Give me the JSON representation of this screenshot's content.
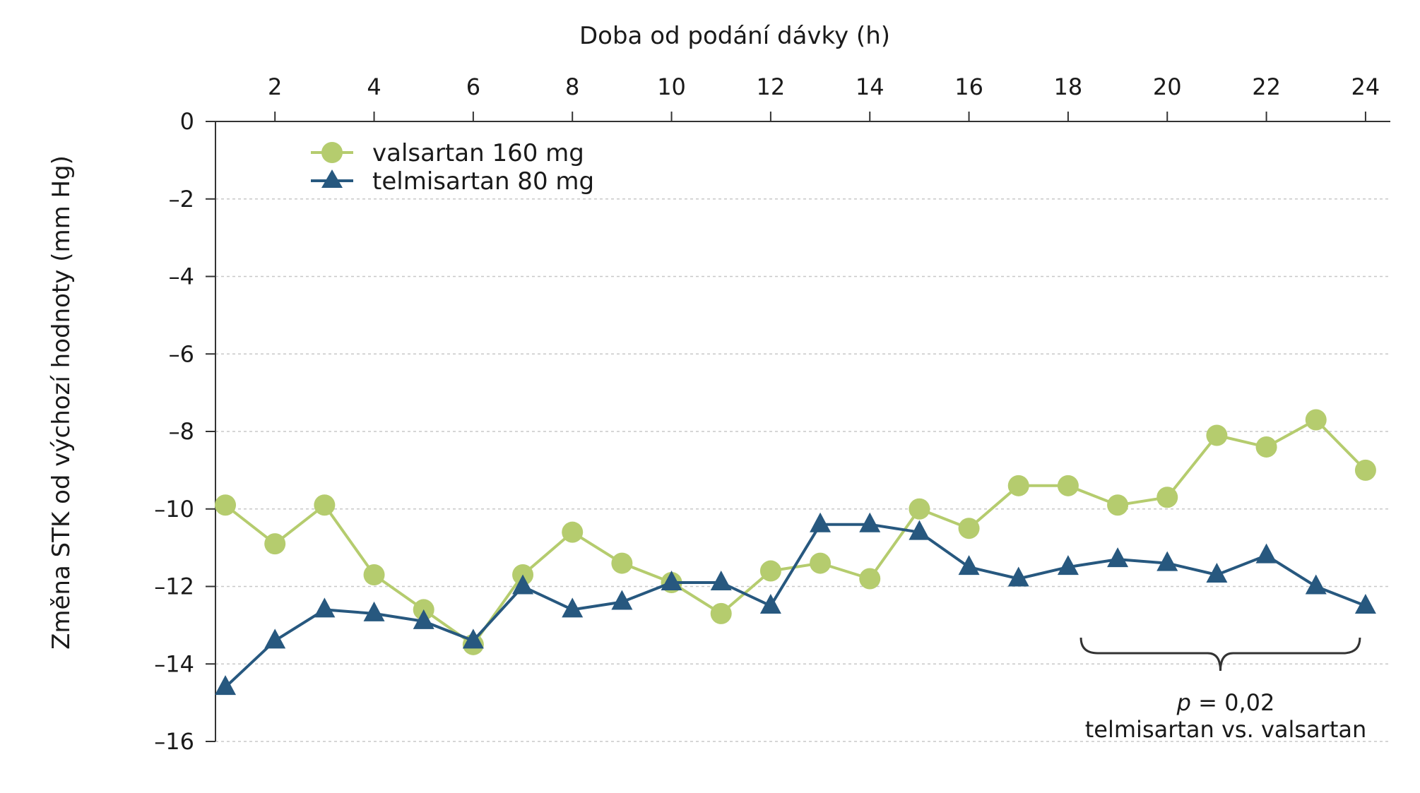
{
  "chart_data": {
    "type": "line",
    "title": "",
    "xlabel": "Doba od podání dávky (h)",
    "ylabel": "Změna STK od výchozí hodnoty (mm Hg)",
    "x_axis_position": "top",
    "grid": "horizontal-dashed",
    "xlim": [
      0.8,
      24.5
    ],
    "ylim": [
      -16,
      0
    ],
    "xticks": [
      2,
      4,
      6,
      8,
      10,
      12,
      14,
      16,
      18,
      20,
      22,
      24
    ],
    "yticks": [
      0,
      -2,
      -4,
      -6,
      -8,
      -10,
      -12,
      -14,
      -16
    ],
    "ytick_labels": [
      "0",
      "–2",
      "–4",
      "–6",
      "–8",
      "–10",
      "–12",
      "–14",
      "–16"
    ],
    "x": [
      1,
      2,
      3,
      4,
      5,
      6,
      7,
      8,
      9,
      10,
      11,
      12,
      13,
      14,
      15,
      16,
      17,
      18,
      19,
      20,
      21,
      22,
      23,
      24
    ],
    "legend_position": "top-left",
    "series": [
      {
        "name": "valsartan 160 mg",
        "color": "#b5cc6e",
        "marker": "circle",
        "values": [
          -9.9,
          -10.9,
          -9.9,
          -11.7,
          -12.6,
          -13.5,
          -11.7,
          -10.6,
          -11.4,
          -11.9,
          -12.7,
          -11.6,
          -11.4,
          -11.8,
          -10.0,
          -10.5,
          -9.4,
          -9.4,
          -9.9,
          -9.7,
          -8.1,
          -8.4,
          -7.7,
          -9.0
        ]
      },
      {
        "name": "telmisartan 80 mg",
        "color": "#27587f",
        "marker": "triangle",
        "values": [
          -14.6,
          -13.4,
          -12.6,
          -12.7,
          -12.9,
          -13.4,
          -12.0,
          -12.6,
          -12.4,
          -11.9,
          -11.9,
          -12.5,
          -10.4,
          -10.4,
          -10.6,
          -11.5,
          -11.8,
          -11.5,
          -11.3,
          -11.4,
          -11.7,
          -11.2,
          -12.0,
          -12.5
        ]
      }
    ],
    "annotation": {
      "type": "brace",
      "x_range": [
        19,
        24
      ],
      "p_symbol": "p",
      "p_value_text": " = 0,02",
      "comparison": "telmisartan vs. valsartan",
      "color": "#333333"
    }
  }
}
